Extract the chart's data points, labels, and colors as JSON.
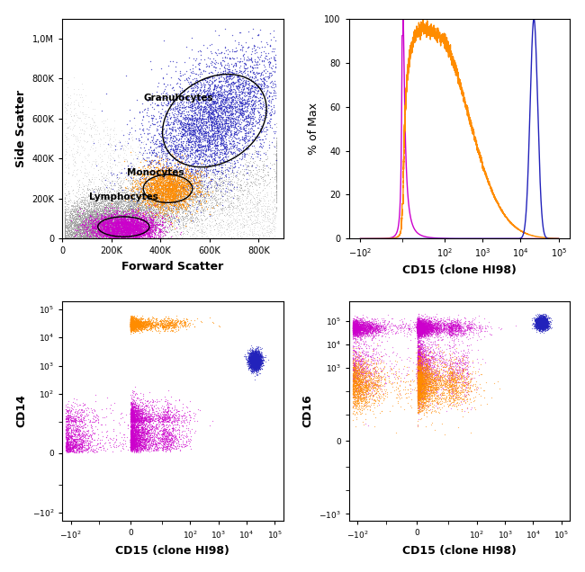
{
  "colors": {
    "blue": "#2222BB",
    "orange": "#FF8C00",
    "magenta": "#CC00CC",
    "gray": "#888888"
  },
  "scatter_top_left": {
    "xlabel": "Forward Scatter",
    "ylabel": "Side Scatter",
    "xlim": [
      0,
      900000
    ],
    "ylim": [
      0,
      1100000
    ],
    "xticklabels": [
      "0",
      "200K",
      "400K",
      "600K",
      "800K"
    ],
    "yticklabels": [
      "0",
      "200K",
      "400K",
      "600K",
      "800K",
      "1,0M"
    ],
    "label_granulocytes": "Granulocytes",
    "label_monocytes": "Monocytes",
    "label_lymphocytes": "Lymphocytes"
  },
  "histogram_top_right": {
    "xlabel": "CD15 (clone HI98)",
    "ylabel": "% of Max"
  },
  "scatter_bottom_left": {
    "xlabel": "CD15 (clone HI98)",
    "ylabel": "CD14"
  },
  "scatter_bottom_right": {
    "xlabel": "CD15 (clone HI98)",
    "ylabel": "CD16"
  }
}
